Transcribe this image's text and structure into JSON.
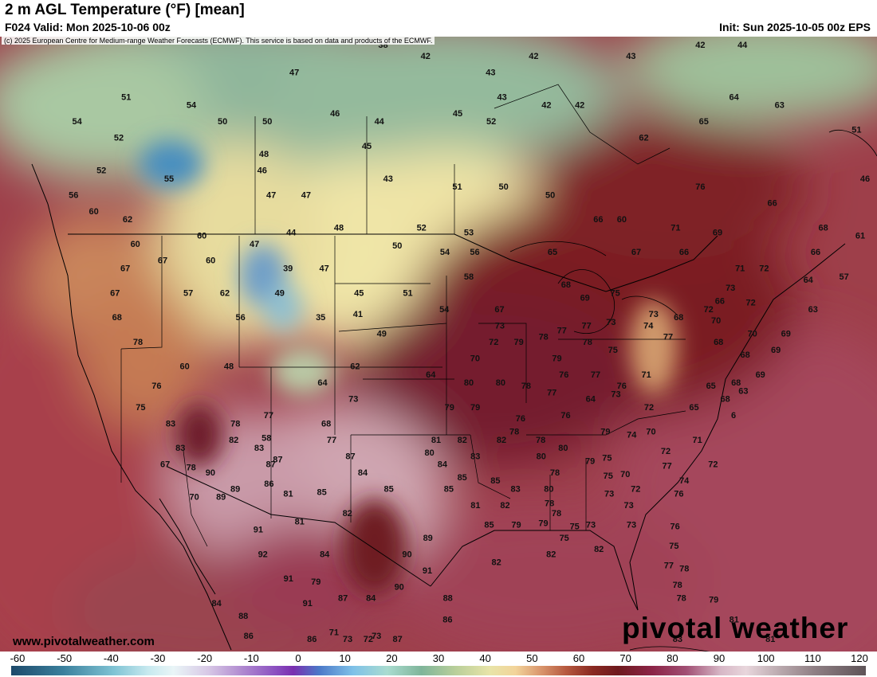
{
  "header": {
    "title": "2 m AGL Temperature (°F) [mean]",
    "valid": "F024 Valid: Mon 2025-10-06 00z",
    "init": "Init: Sun 2025-10-05 00z EPS"
  },
  "copyright": "(c) 2025 European Centre for Medium-range Weather Forecasts (ECMWF). This service is based on data and products of the ECMWF.",
  "website": "www.pivotalweather.com",
  "brand": "pivotal weather",
  "colorbar": {
    "ticks": [
      "-60",
      "-50",
      "-40",
      "-30",
      "-20",
      "-10",
      "0",
      "10",
      "20",
      "30",
      "40",
      "50",
      "60",
      "70",
      "80",
      "90",
      "100",
      "110",
      "120"
    ]
  },
  "colors": {
    "cold": "#8fb8a0",
    "mild": "#f0e0a0",
    "warm": "#8a2a2a",
    "hot": "#e8d0d8",
    "ocean": "#a84a55"
  },
  "temperatures": [
    {
      "v": "51",
      "lon": -126,
      "lat": 54.5
    },
    {
      "v": "54",
      "lon": -130,
      "lat": 53
    },
    {
      "v": "52",
      "lon": -126,
      "lat": 52
    },
    {
      "v": "52",
      "lon": -127,
      "lat": 50
    },
    {
      "v": "56",
      "lon": -129,
      "lat": 48.5
    },
    {
      "v": "60",
      "lon": -127,
      "lat": 47.5
    },
    {
      "v": "62",
      "lon": -124,
      "lat": 47
    },
    {
      "v": "54",
      "lon": -120,
      "lat": 54
    },
    {
      "v": "50",
      "lon": -117,
      "lat": 53
    },
    {
      "v": "55",
      "lon": -121,
      "lat": 49.5
    },
    {
      "v": "47",
      "lon": -111,
      "lat": 56
    },
    {
      "v": "50",
      "lon": -113,
      "lat": 53
    },
    {
      "v": "48",
      "lon": -113,
      "lat": 51
    },
    {
      "v": "46",
      "lon": -113,
      "lat": 50
    },
    {
      "v": "47",
      "lon": -112,
      "lat": 48.5
    },
    {
      "v": "47",
      "lon": -109,
      "lat": 48.5
    },
    {
      "v": "38",
      "lon": -103,
      "lat": 58
    },
    {
      "v": "46",
      "lon": -107,
      "lat": 53.5
    },
    {
      "v": "44",
      "lon": -103,
      "lat": 53
    },
    {
      "v": "45",
      "lon": -104,
      "lat": 51.5
    },
    {
      "v": "43",
      "lon": -102,
      "lat": 49.5
    },
    {
      "v": "42",
      "lon": -99,
      "lat": 57
    },
    {
      "v": "43",
      "lon": -93,
      "lat": 56
    },
    {
      "v": "43",
      "lon": -92,
      "lat": 54.5
    },
    {
      "v": "45",
      "lon": -96,
      "lat": 53.5
    },
    {
      "v": "52",
      "lon": -93,
      "lat": 53
    },
    {
      "v": "42",
      "lon": -89,
      "lat": 57
    },
    {
      "v": "42",
      "lon": -88,
      "lat": 54
    },
    {
      "v": "42",
      "lon": -85,
      "lat": 54
    },
    {
      "v": "43",
      "lon": -80,
      "lat": 57
    },
    {
      "v": "62",
      "lon": -79.5,
      "lat": 52
    },
    {
      "v": "42",
      "lon": -73,
      "lat": 60
    },
    {
      "v": "44",
      "lon": -69,
      "lat": 60
    },
    {
      "v": "64",
      "lon": -71,
      "lat": 54.5
    },
    {
      "v": "63",
      "lon": -67,
      "lat": 54
    },
    {
      "v": "65",
      "lon": -74,
      "lat": 53
    },
    {
      "v": "51",
      "lon": -60.5,
      "lat": 52.5
    },
    {
      "v": "46",
      "lon": -60,
      "lat": 49.5
    },
    {
      "v": "76",
      "lon": -75,
      "lat": 49
    },
    {
      "v": "66",
      "lon": -69,
      "lat": 48
    },
    {
      "v": "68",
      "lon": -65,
      "lat": 46.5
    },
    {
      "v": "61",
      "lon": -62,
      "lat": 46
    },
    {
      "v": "66",
      "lon": -66,
      "lat": 45
    },
    {
      "v": "51",
      "lon": -96,
      "lat": 49
    },
    {
      "v": "50",
      "lon": -92,
      "lat": 49
    },
    {
      "v": "50",
      "lon": -88,
      "lat": 48.5
    },
    {
      "v": "66",
      "lon": -84,
      "lat": 47
    },
    {
      "v": "60",
      "lon": -82,
      "lat": 47
    },
    {
      "v": "71",
      "lon": -77.5,
      "lat": 46.5
    },
    {
      "v": "69",
      "lon": -74,
      "lat": 46.2
    },
    {
      "v": "60",
      "lon": -123,
      "lat": 45.5
    },
    {
      "v": "67",
      "lon": -123.5,
      "lat": 44
    },
    {
      "v": "67",
      "lon": -124,
      "lat": 42.5
    },
    {
      "v": "68",
      "lon": -123.5,
      "lat": 41
    },
    {
      "v": "60",
      "lon": -117.5,
      "lat": 46
    },
    {
      "v": "67",
      "lon": -120.5,
      "lat": 44.5
    },
    {
      "v": "60",
      "lon": -116.5,
      "lat": 44.5
    },
    {
      "v": "57",
      "lon": -118,
      "lat": 42.5
    },
    {
      "v": "62",
      "lon": -115,
      "lat": 42.5
    },
    {
      "v": "56",
      "lon": -113.5,
      "lat": 41
    },
    {
      "v": "47",
      "lon": -113,
      "lat": 45.5
    },
    {
      "v": "44",
      "lon": -110,
      "lat": 46.2
    },
    {
      "v": "48",
      "lon": -106,
      "lat": 46.5
    },
    {
      "v": "39",
      "lon": -110,
      "lat": 44
    },
    {
      "v": "47",
      "lon": -107,
      "lat": 44
    },
    {
      "v": "49",
      "lon": -110.5,
      "lat": 42.5
    },
    {
      "v": "45",
      "lon": -104,
      "lat": 42.5
    },
    {
      "v": "35",
      "lon": -107,
      "lat": 41
    },
    {
      "v": "41",
      "lon": -104,
      "lat": 41.2
    },
    {
      "v": "49",
      "lon": -102,
      "lat": 40
    },
    {
      "v": "52",
      "lon": -99,
      "lat": 46.5
    },
    {
      "v": "53",
      "lon": -95,
      "lat": 46.2
    },
    {
      "v": "50",
      "lon": -101,
      "lat": 45.4
    },
    {
      "v": "54",
      "lon": -97,
      "lat": 45
    },
    {
      "v": "56",
      "lon": -94.5,
      "lat": 45
    },
    {
      "v": "58",
      "lon": -95,
      "lat": 43.5
    },
    {
      "v": "51",
      "lon": -100,
      "lat": 42.5
    },
    {
      "v": "54",
      "lon": -97,
      "lat": 41.5
    },
    {
      "v": "67",
      "lon": -92.5,
      "lat": 41.5
    },
    {
      "v": "65",
      "lon": -88,
      "lat": 45
    },
    {
      "v": "68",
      "lon": -87,
      "lat": 43
    },
    {
      "v": "69",
      "lon": -85.5,
      "lat": 42.2
    },
    {
      "v": "67",
      "lon": -81,
      "lat": 45
    },
    {
      "v": "66",
      "lon": -77,
      "lat": 45
    },
    {
      "v": "71",
      "lon": -72.5,
      "lat": 44
    },
    {
      "v": "72",
      "lon": -70.5,
      "lat": 44
    },
    {
      "v": "64",
      "lon": -67,
      "lat": 43.3
    },
    {
      "v": "57",
      "lon": -64,
      "lat": 43.5
    },
    {
      "v": "73",
      "lon": -73.5,
      "lat": 42.8
    },
    {
      "v": "72",
      "lon": -72,
      "lat": 41.9
    },
    {
      "v": "66",
      "lon": -74.5,
      "lat": 42
    },
    {
      "v": "63",
      "lon": -67,
      "lat": 41.5
    },
    {
      "v": "72",
      "lon": -75.5,
      "lat": 41.5
    },
    {
      "v": "70",
      "lon": -75,
      "lat": 40.8
    },
    {
      "v": "75",
      "lon": -83,
      "lat": 42.5
    },
    {
      "v": "73",
      "lon": -80,
      "lat": 41.2
    },
    {
      "v": "68",
      "lon": -78,
      "lat": 41
    },
    {
      "v": "70",
      "lon": -72.2,
      "lat": 40
    },
    {
      "v": "69",
      "lon": -69.5,
      "lat": 40
    },
    {
      "v": "69",
      "lon": -70.5,
      "lat": 39
    },
    {
      "v": "68",
      "lon": -75,
      "lat": 39.5
    },
    {
      "v": "68",
      "lon": -73,
      "lat": 38.7
    },
    {
      "v": "69",
      "lon": -72,
      "lat": 37.5
    },
    {
      "v": "68",
      "lon": -74,
      "lat": 37
    },
    {
      "v": "65",
      "lon": -76,
      "lat": 36.8
    },
    {
      "v": "63",
      "lon": -73.5,
      "lat": 36.5
    },
    {
      "v": "68",
      "lon": -75,
      "lat": 36
    },
    {
      "v": "65",
      "lon": -77.5,
      "lat": 35.5
    },
    {
      "v": "6",
      "lon": -74.5,
      "lat": 35
    },
    {
      "v": "70",
      "lon": -94.5,
      "lat": 38.5
    },
    {
      "v": "72",
      "lon": -93,
      "lat": 39.5
    },
    {
      "v": "73",
      "lon": -92.5,
      "lat": 40.5
    },
    {
      "v": "79",
      "lon": -91,
      "lat": 39.5
    },
    {
      "v": "78",
      "lon": -89,
      "lat": 39.8
    },
    {
      "v": "77",
      "lon": -87.5,
      "lat": 40.2
    },
    {
      "v": "77",
      "lon": -85.5,
      "lat": 40.5
    },
    {
      "v": "73",
      "lon": -83.5,
      "lat": 40.7
    },
    {
      "v": "74",
      "lon": -80.5,
      "lat": 40.5
    },
    {
      "v": "77",
      "lon": -79,
      "lat": 39.8
    },
    {
      "v": "78",
      "lon": -85.5,
      "lat": 39.5
    },
    {
      "v": "79",
      "lon": -88,
      "lat": 38.5
    },
    {
      "v": "75",
      "lon": -83.5,
      "lat": 39
    },
    {
      "v": "76",
      "lon": -87.5,
      "lat": 37.5
    },
    {
      "v": "77",
      "lon": -85,
      "lat": 37.5
    },
    {
      "v": "71",
      "lon": -81,
      "lat": 37.5
    },
    {
      "v": "76",
      "lon": -83,
      "lat": 36.8
    },
    {
      "v": "73",
      "lon": -83.5,
      "lat": 36.3
    },
    {
      "v": "72",
      "lon": -81,
      "lat": 35.5
    },
    {
      "v": "64",
      "lon": -85.5,
      "lat": 36
    },
    {
      "v": "76",
      "lon": -87.5,
      "lat": 35
    },
    {
      "v": "64",
      "lon": -98,
      "lat": 37.5
    },
    {
      "v": "80",
      "lon": -95,
      "lat": 37
    },
    {
      "v": "80",
      "lon": -92.5,
      "lat": 37
    },
    {
      "v": "78",
      "lon": -90.5,
      "lat": 36.8
    },
    {
      "v": "77",
      "lon": -88.5,
      "lat": 36.4
    },
    {
      "v": "79",
      "lon": -96.5,
      "lat": 35.5
    },
    {
      "v": "79",
      "lon": -94.5,
      "lat": 35.5
    },
    {
      "v": "76",
      "lon": -91,
      "lat": 34.8
    },
    {
      "v": "79",
      "lon": -84.5,
      "lat": 34
    },
    {
      "v": "74",
      "lon": -82.5,
      "lat": 33.8
    },
    {
      "v": "70",
      "lon": -81,
      "lat": 34
    },
    {
      "v": "71",
      "lon": -77.5,
      "lat": 33.5
    },
    {
      "v": "72",
      "lon": -80,
      "lat": 32.8
    },
    {
      "v": "72",
      "lon": -76.5,
      "lat": 32
    },
    {
      "v": "77",
      "lon": -80,
      "lat": 31.9
    },
    {
      "v": "74",
      "lon": -78.8,
      "lat": 31
    },
    {
      "v": "76",
      "lon": -79.3,
      "lat": 30.2
    },
    {
      "v": "80",
      "lon": -87.8,
      "lat": 33
    },
    {
      "v": "79",
      "lon": -85.8,
      "lat": 32.2
    },
    {
      "v": "75",
      "lon": -84.5,
      "lat": 32.4
    },
    {
      "v": "75",
      "lon": -84.5,
      "lat": 31.3
    },
    {
      "v": "70",
      "lon": -83.2,
      "lat": 31.4
    },
    {
      "v": "72",
      "lon": -82.5,
      "lat": 30.5
    },
    {
      "v": "73",
      "lon": -84.5,
      "lat": 30.2
    },
    {
      "v": "73",
      "lon": -83.1,
      "lat": 29.5
    },
    {
      "v": "73",
      "lon": -86,
      "lat": 28.3
    },
    {
      "v": "73",
      "lon": -83,
      "lat": 28.3
    },
    {
      "v": "76",
      "lon": -79.8,
      "lat": 28.2
    },
    {
      "v": "75",
      "lon": -80,
      "lat": 27
    },
    {
      "v": "77",
      "lon": -80.5,
      "lat": 25.8
    },
    {
      "v": "78",
      "lon": -79.4,
      "lat": 25.6
    },
    {
      "v": "78",
      "lon": -80,
      "lat": 24.6
    },
    {
      "v": "78",
      "lon": -79.8,
      "lat": 23.8
    },
    {
      "v": "79",
      "lon": -77.5,
      "lat": 23.7
    },
    {
      "v": "81",
      "lon": -76.2,
      "lat": 22.5
    },
    {
      "v": "81",
      "lon": -73.8,
      "lat": 21.3
    },
    {
      "v": "83",
      "lon": -80.5,
      "lat": 19.5
    },
    {
      "v": "82",
      "lon": -92.5,
      "lat": 33.5
    },
    {
      "v": "78",
      "lon": -91.5,
      "lat": 34
    },
    {
      "v": "78",
      "lon": -89.5,
      "lat": 33.5
    },
    {
      "v": "80",
      "lon": -89.5,
      "lat": 32.5
    },
    {
      "v": "78",
      "lon": -88.5,
      "lat": 31.5
    },
    {
      "v": "80",
      "lon": -89,
      "lat": 30.5
    },
    {
      "v": "78",
      "lon": -89,
      "lat": 29.6
    },
    {
      "v": "78",
      "lon": -88.5,
      "lat": 29
    },
    {
      "v": "79",
      "lon": -89.5,
      "lat": 28.4
    },
    {
      "v": "75",
      "lon": -88,
      "lat": 27.5
    },
    {
      "v": "75",
      "lon": -87.2,
      "lat": 28.2
    },
    {
      "v": "81",
      "lon": -97.5,
      "lat": 33.5
    },
    {
      "v": "80",
      "lon": -98,
      "lat": 32.7
    },
    {
      "v": "82",
      "lon": -95.5,
      "lat": 33.5
    },
    {
      "v": "83",
      "lon": -94.5,
      "lat": 32.5
    },
    {
      "v": "84",
      "lon": -97,
      "lat": 32
    },
    {
      "v": "85",
      "lon": -95.5,
      "lat": 31.2
    },
    {
      "v": "85",
      "lon": -93,
      "lat": 31
    },
    {
      "v": "83",
      "lon": -91.5,
      "lat": 30.5
    },
    {
      "v": "85",
      "lon": -96.5,
      "lat": 30.5
    },
    {
      "v": "81",
      "lon": -94.5,
      "lat": 29.5
    },
    {
      "v": "82",
      "lon": -92.3,
      "lat": 29.5
    },
    {
      "v": "85",
      "lon": -93.5,
      "lat": 28.3
    },
    {
      "v": "79",
      "lon": -91.5,
      "lat": 28.3
    },
    {
      "v": "87",
      "lon": -104,
      "lat": 32.5
    },
    {
      "v": "84",
      "lon": -103,
      "lat": 31.5
    },
    {
      "v": "85",
      "lon": -101,
      "lat": 30.5
    },
    {
      "v": "89",
      "lon": -98,
      "lat": 27.5
    },
    {
      "v": "90",
      "lon": -99.5,
      "lat": 26.5
    },
    {
      "v": "91",
      "lon": -98,
      "lat": 25.5
    },
    {
      "v": "90",
      "lon": -100,
      "lat": 24.5
    },
    {
      "v": "88",
      "lon": -96.5,
      "lat": 23.8
    },
    {
      "v": "86",
      "lon": -96.5,
      "lat": 22.5
    },
    {
      "v": "82",
      "lon": -93,
      "lat": 26
    },
    {
      "v": "82",
      "lon": -89,
      "lat": 26.5
    },
    {
      "v": "82",
      "lon": -85.5,
      "lat": 26.8
    },
    {
      "v": "78",
      "lon": -113,
      "lat": 34.5
    },
    {
      "v": "82",
      "lon": -113,
      "lat": 33.5
    },
    {
      "v": "83",
      "lon": -111,
      "lat": 33
    },
    {
      "v": "87",
      "lon": -110,
      "lat": 32
    },
    {
      "v": "86",
      "lon": -110,
      "lat": 30.8
    },
    {
      "v": "81",
      "lon": -108.5,
      "lat": 30.2
    },
    {
      "v": "85",
      "lon": -106,
      "lat": 30.3
    },
    {
      "v": "82",
      "lon": -104,
      "lat": 29
    },
    {
      "v": "81",
      "lon": -107.5,
      "lat": 28.5
    },
    {
      "v": "84",
      "lon": -105.5,
      "lat": 26.5
    },
    {
      "v": "79",
      "lon": -106,
      "lat": 24.8
    },
    {
      "v": "87",
      "lon": -104,
      "lat": 23.8
    },
    {
      "v": "84",
      "lon": -102,
      "lat": 23.8
    },
    {
      "v": "71",
      "lon": -104.5,
      "lat": 21.7
    },
    {
      "v": "73",
      "lon": -103.5,
      "lat": 21
    },
    {
      "v": "73",
      "lon": -101.5,
      "lat": 21.5
    },
    {
      "v": "87",
      "lon": -100,
      "lat": 21
    },
    {
      "v": "72",
      "lon": -102,
      "lat": 19.9
    },
    {
      "v": "86",
      "lon": -106,
      "lat": 21
    },
    {
      "v": "89",
      "lon": -112.5,
      "lat": 30.5
    },
    {
      "v": "91",
      "lon": -110.5,
      "lat": 28
    },
    {
      "v": "92",
      "lon": -110,
      "lat": 26.5
    },
    {
      "v": "91",
      "lon": -108,
      "lat": 25
    },
    {
      "v": "91",
      "lon": -106.5,
      "lat": 23.5
    },
    {
      "v": "84",
      "lon": -113,
      "lat": 23.5
    },
    {
      "v": "88",
      "lon": -111,
      "lat": 22.7
    },
    {
      "v": "86",
      "lon": -110.5,
      "lat": 21.5
    },
    {
      "v": "62",
      "lon": -104,
      "lat": 38
    },
    {
      "v": "64",
      "lon": -106.5,
      "lat": 37
    },
    {
      "v": "73",
      "lon": -104,
      "lat": 36
    },
    {
      "v": "68",
      "lon": -106,
      "lat": 34.5
    },
    {
      "v": "77",
      "lon": -105.5,
      "lat": 33.5
    },
    {
      "v": "77",
      "lon": -110.5,
      "lat": 35
    },
    {
      "v": "58",
      "lon": -110.5,
      "lat": 33.6
    },
    {
      "v": "87",
      "lon": -109.5,
      "lat": 32.3
    },
    {
      "v": "48",
      "lon": -114,
      "lat": 38
    },
    {
      "v": "60",
      "lon": -117.5,
      "lat": 38
    },
    {
      "v": "78",
      "lon": -121.5,
      "lat": 39.5
    },
    {
      "v": "76",
      "lon": -119.5,
      "lat": 36.8
    },
    {
      "v": "75",
      "lon": -120.5,
      "lat": 35.5
    },
    {
      "v": "83",
      "lon": -118,
      "lat": 34.5
    },
    {
      "v": "83",
      "lon": -117,
      "lat": 33
    },
    {
      "v": "67",
      "lon": -118,
      "lat": 32
    },
    {
      "v": "78",
      "lon": -116,
      "lat": 31.8
    },
    {
      "v": "90",
      "lon": -114.5,
      "lat": 31.5
    },
    {
      "v": "70",
      "lon": -115.5,
      "lat": 30
    },
    {
      "v": "89",
      "lon": -113.5,
      "lat": 30
    }
  ]
}
